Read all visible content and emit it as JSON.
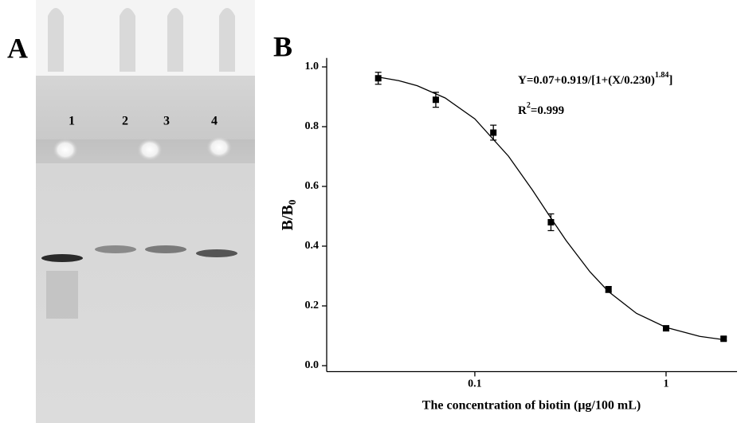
{
  "panel_a": {
    "label": "A",
    "lanes": [
      "1",
      "2",
      "3",
      "4"
    ]
  },
  "chart_data": {
    "type": "scatter",
    "panel_label": "B",
    "x_label": "The concentration of biotin (μg/100 mL)",
    "y_label": {
      "main": "B/B",
      "sub": "0"
    },
    "equation": {
      "main": "Y=0.07+0.919/[1+(X/0.230)",
      "sup": "1.84",
      "end": "]"
    },
    "r2": {
      "main": "R",
      "sup": "2",
      "end": "=0.999"
    },
    "x_log": true,
    "xlim": [
      0.0168,
      2.35
    ],
    "ylim": [
      -0.02,
      1.03
    ],
    "xticks": [
      0.1,
      1
    ],
    "yticks": [
      {
        "value": 0,
        "label": "0.0"
      },
      0.2,
      0.4,
      0.6,
      0.8,
      {
        "value": 1,
        "label": "1.0"
      }
    ],
    "series": [
      {
        "color": "#000000",
        "x": [
          0.03125,
          0.0625,
          0.125,
          0.25,
          0.5,
          1,
          2
        ],
        "values": [
          0.962,
          0.89,
          0.78,
          0.48,
          0.255,
          0.125,
          0.09
        ],
        "errors": [
          0.02,
          0.025,
          0.025,
          0.028,
          0.01,
          0.008,
          0.006
        ]
      }
    ],
    "fit": {
      "color": "#000000",
      "x": [
        0.03125,
        0.04,
        0.05,
        0.07,
        0.1,
        0.15,
        0.2,
        0.25,
        0.3,
        0.4,
        0.5,
        0.7,
        1,
        1.5,
        2
      ],
      "values": [
        0.966,
        0.954,
        0.937,
        0.896,
        0.826,
        0.701,
        0.588,
        0.494,
        0.419,
        0.314,
        0.248,
        0.175,
        0.128,
        0.098,
        0.087
      ]
    }
  }
}
